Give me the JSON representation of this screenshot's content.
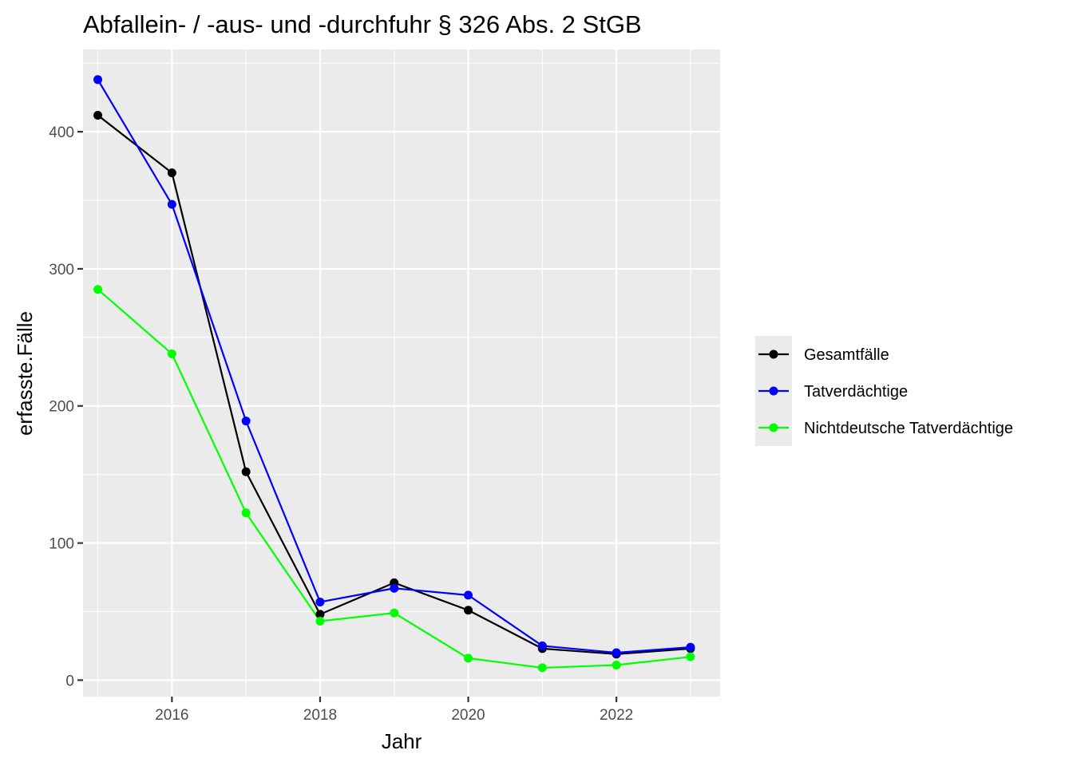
{
  "chart_data": {
    "type": "line",
    "title": "Abfallein- / -aus- und -durchfuhr § 326 Abs. 2 StGB",
    "xlabel": "Jahr",
    "ylabel": "erfasste.Fälle",
    "x": [
      2015,
      2016,
      2017,
      2018,
      2019,
      2020,
      2021,
      2022,
      2023
    ],
    "xlim": [
      2014.8,
      2023.4
    ],
    "ylim": [
      -12,
      460
    ],
    "x_ticks": [
      2016,
      2018,
      2020,
      2022
    ],
    "x_tick_labels": [
      "2016",
      "2018",
      "2020",
      "2022"
    ],
    "y_ticks": [
      0,
      100,
      200,
      300,
      400
    ],
    "y_tick_labels": [
      "0",
      "100",
      "200",
      "300",
      "400"
    ],
    "grid": true,
    "legend_position": "right",
    "series": [
      {
        "name": "Gesamtfälle",
        "color": "#000000",
        "values": [
          412,
          370,
          152,
          48,
          71,
          51,
          23,
          19,
          23
        ]
      },
      {
        "name": "Tatverdächtige",
        "color": "#0000ff",
        "values": [
          438,
          347,
          189,
          57,
          67,
          62,
          25,
          20,
          24
        ]
      },
      {
        "name": "Nichtdeutsche Tatverdächtige",
        "color": "#00ff00",
        "values": [
          285,
          238,
          122,
          43,
          49,
          16,
          9,
          11,
          17
        ]
      }
    ]
  }
}
